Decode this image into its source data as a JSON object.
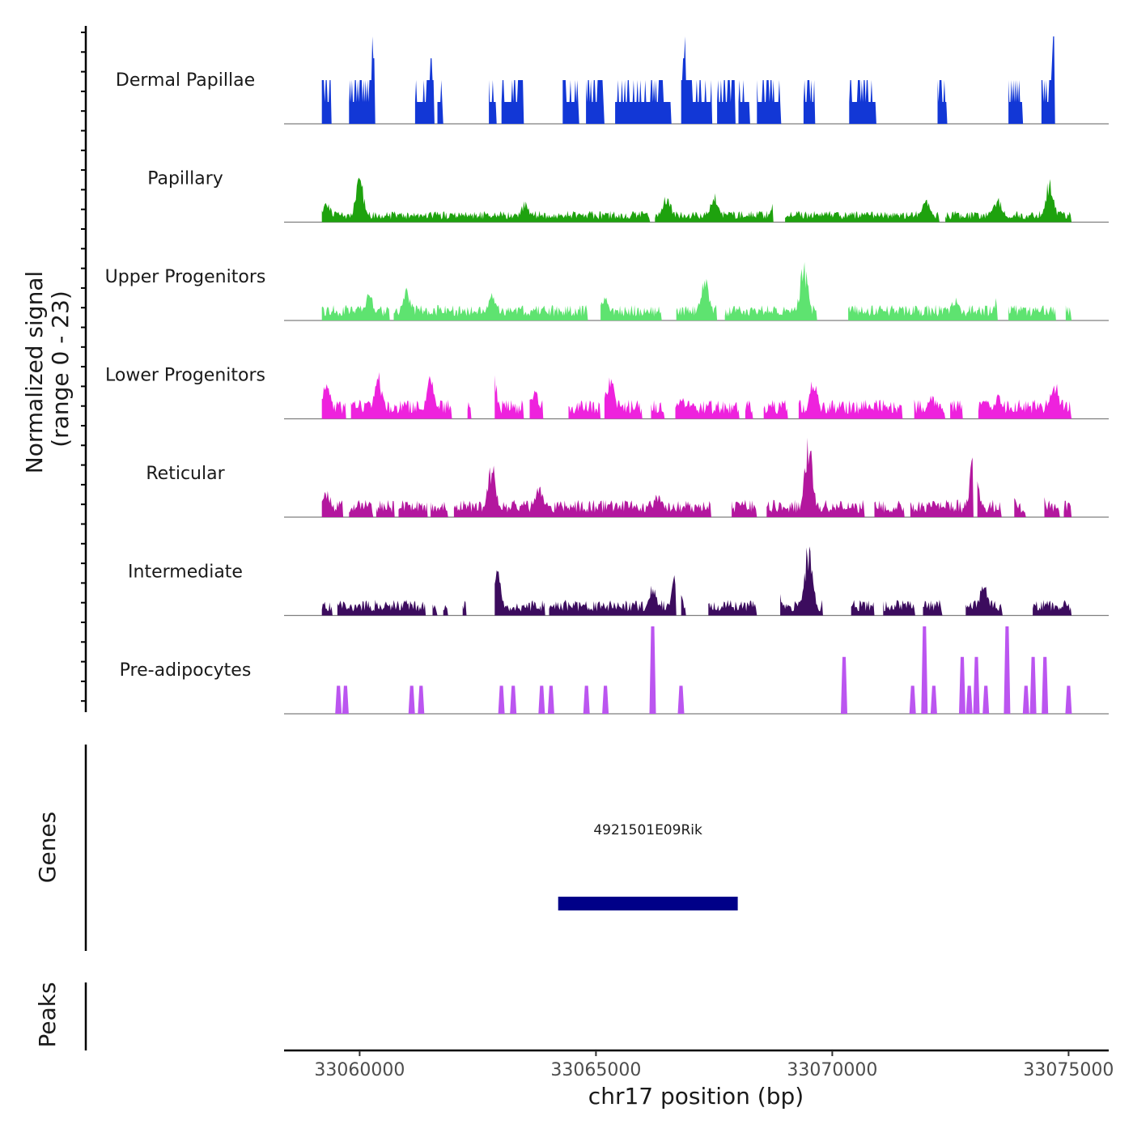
{
  "chart_data": {
    "type": "coverage",
    "y_axis_title_line1": "Normalized signal",
    "y_axis_title_line2": "(range 0 - 23)",
    "y_range": [
      0,
      23
    ],
    "x_axis_title": "chr17 position (bp)",
    "x_range": [
      33058400,
      33075850
    ],
    "x_ticks": [
      {
        "value": 33060000,
        "label": "33060000"
      },
      {
        "value": 33065000,
        "label": "33065000"
      },
      {
        "value": 33070000,
        "label": "33070000"
      },
      {
        "value": 33075000,
        "label": "33075000"
      }
    ],
    "tracks": [
      {
        "name": "Dermal Papillae",
        "color": "#1237d6",
        "style": "blocks",
        "seed": 11,
        "density": 0.34,
        "scale": 0.55,
        "peaks": [
          [
            33059800,
            0.45
          ],
          [
            33060300,
            0.95
          ],
          [
            33060800,
            0.45
          ],
          [
            33061500,
            0.7
          ],
          [
            33061900,
            0.65
          ],
          [
            33063200,
            0.3
          ],
          [
            33065200,
            0.3
          ],
          [
            33066200,
            0.6
          ],
          [
            33066900,
            1.0
          ],
          [
            33067500,
            0.3
          ],
          [
            33069400,
            0.3
          ],
          [
            33070600,
            0.6
          ],
          [
            33071500,
            0.55
          ],
          [
            33073700,
            0.3
          ],
          [
            33074700,
            1.0
          ]
        ]
      },
      {
        "name": "Papillary",
        "color": "#1ea20e",
        "style": "smooth",
        "seed": 23,
        "density": 0.88,
        "scale": 0.13,
        "peaks": [
          [
            33059300,
            0.28
          ],
          [
            33060000,
            0.55
          ],
          [
            33063500,
            0.25
          ],
          [
            33066500,
            0.35
          ],
          [
            33067500,
            0.35
          ],
          [
            33068800,
            0.38
          ],
          [
            33072000,
            0.3
          ],
          [
            33073500,
            0.3
          ],
          [
            33074600,
            0.55
          ]
        ]
      },
      {
        "name": "Upper Progenitors",
        "color": "#5ee370",
        "style": "smooth",
        "seed": 37,
        "density": 0.6,
        "scale": 0.18,
        "peaks": [
          [
            33060200,
            0.38
          ],
          [
            33061000,
            0.4
          ],
          [
            33062800,
            0.32
          ],
          [
            33065200,
            0.32
          ],
          [
            33067300,
            0.55
          ],
          [
            33069400,
            0.68
          ],
          [
            33072600,
            0.3
          ],
          [
            33073500,
            0.3
          ]
        ]
      },
      {
        "name": "Lower Progenitors",
        "color": "#ee22dd",
        "style": "smooth",
        "seed": 41,
        "density": 0.72,
        "scale": 0.22,
        "peaks": [
          [
            33059300,
            0.5
          ],
          [
            33060400,
            0.55
          ],
          [
            33061500,
            0.55
          ],
          [
            33062800,
            0.7
          ],
          [
            33063700,
            0.35
          ],
          [
            33065300,
            0.55
          ],
          [
            33066800,
            0.3
          ],
          [
            33069600,
            0.5
          ],
          [
            33072100,
            0.3
          ],
          [
            33073500,
            0.3
          ],
          [
            33074700,
            0.48
          ]
        ]
      },
      {
        "name": "Reticular",
        "color": "#b3179e",
        "style": "smooth",
        "seed": 53,
        "density": 0.62,
        "scale": 0.2,
        "peaks": [
          [
            33059300,
            0.35
          ],
          [
            33062800,
            0.68
          ],
          [
            33063800,
            0.4
          ],
          [
            33066300,
            0.3
          ],
          [
            33069500,
            1.0
          ],
          [
            33073000,
            0.82
          ],
          [
            33073800,
            0.4
          ],
          [
            33074400,
            0.5
          ]
        ]
      },
      {
        "name": "Intermediate",
        "color": "#3c0c5e",
        "style": "smooth",
        "seed": 67,
        "density": 0.6,
        "scale": 0.18,
        "peaks": [
          [
            33062900,
            0.58
          ],
          [
            33066200,
            0.38
          ],
          [
            33066700,
            0.55
          ],
          [
            33068800,
            0.45
          ],
          [
            33069500,
            0.88
          ],
          [
            33073200,
            0.4
          ]
        ]
      },
      {
        "name": "Pre-adipocytes",
        "color": "#bb55f0",
        "style": "spikes",
        "seed": 71,
        "density": 0,
        "scale": 0,
        "spikes": [
          [
            33059550,
            0.32
          ],
          [
            33059700,
            0.32
          ],
          [
            33061100,
            0.32
          ],
          [
            33061300,
            0.32
          ],
          [
            33063000,
            0.32
          ],
          [
            33063250,
            0.32
          ],
          [
            33063850,
            0.32
          ],
          [
            33064050,
            0.32
          ],
          [
            33064800,
            0.32
          ],
          [
            33065200,
            0.32
          ],
          [
            33066200,
            1.0
          ],
          [
            33066800,
            0.32
          ],
          [
            33070250,
            0.65
          ],
          [
            33071700,
            0.32
          ],
          [
            33071950,
            1.0
          ],
          [
            33072150,
            0.32
          ],
          [
            33072750,
            0.65
          ],
          [
            33072900,
            0.32
          ],
          [
            33073050,
            0.65
          ],
          [
            33073250,
            0.32
          ],
          [
            33073700,
            1.0
          ],
          [
            33074100,
            0.32
          ],
          [
            33074250,
            0.65
          ],
          [
            33074500,
            0.65
          ],
          [
            33075000,
            0.32
          ]
        ]
      }
    ],
    "genes": {
      "track_title": "Genes",
      "items": [
        {
          "name": "4921501E09Rik",
          "start": 33064200,
          "end": 33068000,
          "color": "#000088"
        }
      ]
    },
    "peaks_track": {
      "track_title": "Peaks",
      "items": []
    }
  }
}
